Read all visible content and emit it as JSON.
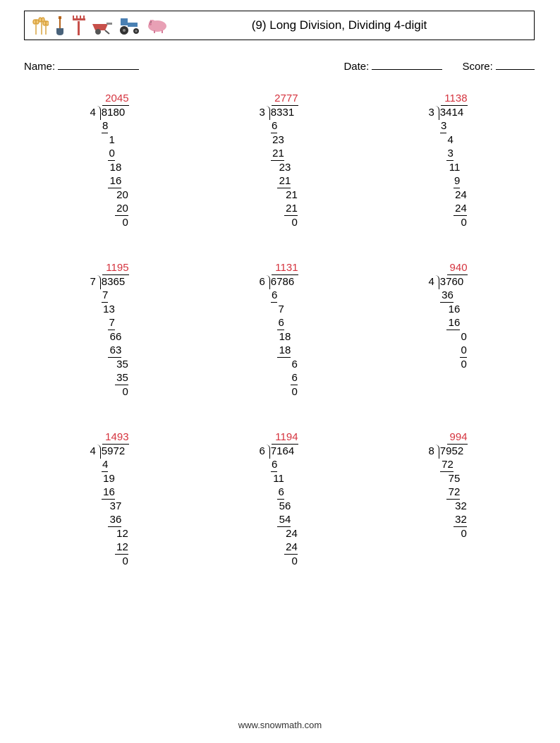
{
  "header": {
    "title": "(9) Long Division, Dividing 4-digit",
    "icons": [
      "wheat-icon",
      "shovel-icon",
      "rake-icon",
      "wheelbarrow-icon",
      "tractor-icon",
      "pig-icon"
    ]
  },
  "info": {
    "name_label": "Name:",
    "date_label": "Date:",
    "score_label": "Score:",
    "name_underline_width": 115,
    "date_underline_width": 100,
    "score_underline_width": 55
  },
  "quotient_color": "#d5343f",
  "background_color": "#ffffff",
  "border_color": "#000000",
  "font": {
    "body_size": 15,
    "title_size": 17
  },
  "problems": [
    {
      "divisor": "4",
      "dividend": "8180",
      "quotient": "2045",
      "steps": [
        {
          "v": "8",
          "indent": 0,
          "sub": true,
          "bar": 1
        },
        {
          "v": "1",
          "indent": 1,
          "sub": false
        },
        {
          "v": "0",
          "indent": 1,
          "sub": true,
          "bar": 1
        },
        {
          "v": "18",
          "indent": 1,
          "sub": false
        },
        {
          "v": "16",
          "indent": 1,
          "sub": true,
          "bar": 2
        },
        {
          "v": "20",
          "indent": 2,
          "sub": false
        },
        {
          "v": "20",
          "indent": 2,
          "sub": true,
          "bar": 2
        },
        {
          "v": "0",
          "indent": 3,
          "sub": false
        }
      ]
    },
    {
      "divisor": "3",
      "dividend": "8331",
      "quotient": "2777",
      "steps": [
        {
          "v": "6",
          "indent": 0,
          "sub": true,
          "bar": 1
        },
        {
          "v": "23",
          "indent": 0,
          "sub": false
        },
        {
          "v": "21",
          "indent": 0,
          "sub": true,
          "bar": 2
        },
        {
          "v": "23",
          "indent": 1,
          "sub": false
        },
        {
          "v": "21",
          "indent": 1,
          "sub": true,
          "bar": 2
        },
        {
          "v": "21",
          "indent": 2,
          "sub": false
        },
        {
          "v": "21",
          "indent": 2,
          "sub": true,
          "bar": 2
        },
        {
          "v": "0",
          "indent": 3,
          "sub": false
        }
      ]
    },
    {
      "divisor": "3",
      "dividend": "3414",
      "quotient": "1138",
      "steps": [
        {
          "v": "3",
          "indent": 0,
          "sub": true,
          "bar": 1
        },
        {
          "v": "4",
          "indent": 1,
          "sub": false
        },
        {
          "v": "3",
          "indent": 1,
          "sub": true,
          "bar": 1
        },
        {
          "v": "11",
          "indent": 1,
          "sub": false
        },
        {
          "v": "9",
          "indent": 2,
          "sub": true,
          "bar": 1
        },
        {
          "v": "24",
          "indent": 2,
          "sub": false
        },
        {
          "v": "24",
          "indent": 2,
          "sub": true,
          "bar": 2
        },
        {
          "v": "0",
          "indent": 3,
          "sub": false
        }
      ]
    },
    {
      "divisor": "7",
      "dividend": "8365",
      "quotient": "1195",
      "steps": [
        {
          "v": "7",
          "indent": 0,
          "sub": true,
          "bar": 1
        },
        {
          "v": "13",
          "indent": 0,
          "sub": false
        },
        {
          "v": "7",
          "indent": 1,
          "sub": true,
          "bar": 1
        },
        {
          "v": "66",
          "indent": 1,
          "sub": false
        },
        {
          "v": "63",
          "indent": 1,
          "sub": true,
          "bar": 2
        },
        {
          "v": "35",
          "indent": 2,
          "sub": false
        },
        {
          "v": "35",
          "indent": 2,
          "sub": true,
          "bar": 2
        },
        {
          "v": "0",
          "indent": 3,
          "sub": false
        }
      ]
    },
    {
      "divisor": "6",
      "dividend": "6786",
      "quotient": "1131",
      "steps": [
        {
          "v": "6",
          "indent": 0,
          "sub": true,
          "bar": 1
        },
        {
          "v": "7",
          "indent": 1,
          "sub": false
        },
        {
          "v": "6",
          "indent": 1,
          "sub": true,
          "bar": 1
        },
        {
          "v": "18",
          "indent": 1,
          "sub": false
        },
        {
          "v": "18",
          "indent": 1,
          "sub": true,
          "bar": 2
        },
        {
          "v": "6",
          "indent": 3,
          "sub": false
        },
        {
          "v": "6",
          "indent": 3,
          "sub": true,
          "bar": 1
        },
        {
          "v": "0",
          "indent": 3,
          "sub": false
        }
      ]
    },
    {
      "divisor": "4",
      "dividend": "3760",
      "quotient": "940",
      "quot_offset": 1,
      "steps": [
        {
          "v": "36",
          "indent": 0,
          "sub": true,
          "bar": 2
        },
        {
          "v": "16",
          "indent": 1,
          "sub": false
        },
        {
          "v": "16",
          "indent": 1,
          "sub": true,
          "bar": 2
        },
        {
          "v": "0",
          "indent": 3,
          "sub": false
        },
        {
          "v": "0",
          "indent": 3,
          "sub": true,
          "bar": 1
        },
        {
          "v": "0",
          "indent": 3,
          "sub": false
        }
      ]
    },
    {
      "divisor": "4",
      "dividend": "5972",
      "quotient": "1493",
      "steps": [
        {
          "v": "4",
          "indent": 0,
          "sub": true,
          "bar": 1
        },
        {
          "v": "19",
          "indent": 0,
          "sub": false
        },
        {
          "v": "16",
          "indent": 0,
          "sub": true,
          "bar": 2
        },
        {
          "v": "37",
          "indent": 1,
          "sub": false
        },
        {
          "v": "36",
          "indent": 1,
          "sub": true,
          "bar": 2
        },
        {
          "v": "12",
          "indent": 2,
          "sub": false
        },
        {
          "v": "12",
          "indent": 2,
          "sub": true,
          "bar": 2
        },
        {
          "v": "0",
          "indent": 3,
          "sub": false
        }
      ]
    },
    {
      "divisor": "6",
      "dividend": "7164",
      "quotient": "1194",
      "steps": [
        {
          "v": "6",
          "indent": 0,
          "sub": true,
          "bar": 1
        },
        {
          "v": "11",
          "indent": 0,
          "sub": false
        },
        {
          "v": "6",
          "indent": 1,
          "sub": true,
          "bar": 1
        },
        {
          "v": "56",
          "indent": 1,
          "sub": false
        },
        {
          "v": "54",
          "indent": 1,
          "sub": true,
          "bar": 2
        },
        {
          "v": "24",
          "indent": 2,
          "sub": false
        },
        {
          "v": "24",
          "indent": 2,
          "sub": true,
          "bar": 2
        },
        {
          "v": "0",
          "indent": 3,
          "sub": false
        }
      ]
    },
    {
      "divisor": "8",
      "dividend": "7952",
      "quotient": "994",
      "quot_offset": 1,
      "steps": [
        {
          "v": "72",
          "indent": 0,
          "sub": true,
          "bar": 2
        },
        {
          "v": "75",
          "indent": 1,
          "sub": false
        },
        {
          "v": "72",
          "indent": 1,
          "sub": true,
          "bar": 2
        },
        {
          "v": "32",
          "indent": 2,
          "sub": false
        },
        {
          "v": "32",
          "indent": 2,
          "sub": true,
          "bar": 2
        },
        {
          "v": "0",
          "indent": 3,
          "sub": false
        }
      ]
    }
  ],
  "footer": "www.snowmath.com",
  "digit_width": 9.5
}
